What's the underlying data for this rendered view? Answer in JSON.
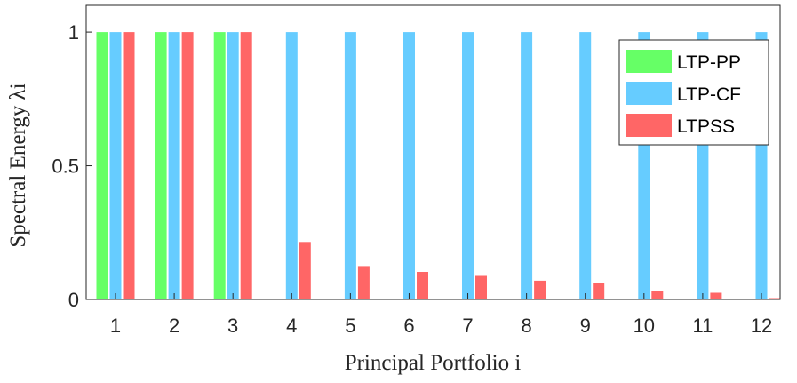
{
  "chart_data": {
    "type": "bar",
    "categories": [
      "1",
      "2",
      "3",
      "4",
      "5",
      "6",
      "7",
      "8",
      "9",
      "10",
      "11",
      "12"
    ],
    "series": [
      {
        "name": "LTP-PP",
        "color": "#66ff66",
        "values": [
          1,
          1,
          1,
          null,
          null,
          null,
          null,
          null,
          null,
          null,
          null,
          null
        ]
      },
      {
        "name": "LTP-CF",
        "color": "#66ccff",
        "values": [
          1,
          1,
          1,
          1,
          1,
          1,
          1,
          1,
          1,
          1,
          1,
          1
        ]
      },
      {
        "name": "LTPSS",
        "color": "#ff6666",
        "values": [
          1,
          1,
          1,
          0.215,
          0.125,
          0.103,
          0.088,
          0.07,
          0.063,
          0.033,
          0.025,
          0.005
        ]
      }
    ],
    "yticks": [
      "0",
      "0.5",
      "1"
    ],
    "xlabel": "Principal Portfolio i",
    "ylabel": "Spectral Energy λi",
    "ylim": [
      0,
      1.1
    ],
    "grid": false,
    "legend_position": "top-right"
  }
}
